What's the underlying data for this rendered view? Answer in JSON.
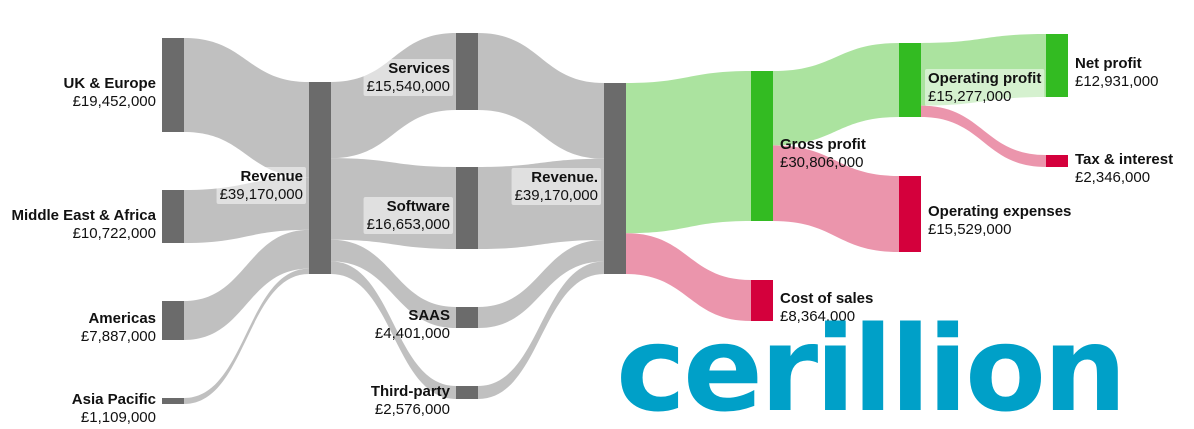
{
  "logo": {
    "text": "cerillion",
    "color": "#00a0c8"
  },
  "colors": {
    "node": "#6b6b6b",
    "flow_gray": "#bdbdbd",
    "flow_green": "#a6e29a",
    "node_green": "#33bb22",
    "flow_pink": "#ea8fa8",
    "node_red": "#d4003c"
  },
  "chart_data": {
    "type": "sankey",
    "currency": "£",
    "nodes": [
      {
        "id": "uk",
        "name": "UK & Europe",
        "value": "£19,452,000"
      },
      {
        "id": "mea",
        "name": "Middle East & Africa",
        "value": "£10,722,000"
      },
      {
        "id": "am",
        "name": "Americas",
        "value": "£7,887,000"
      },
      {
        "id": "ap",
        "name": "Asia Pacific",
        "value": "£1,109,000"
      },
      {
        "id": "rev",
        "name": "Revenue",
        "value": "£39,170,000"
      },
      {
        "id": "svc",
        "name": "Services",
        "value": "£15,540,000"
      },
      {
        "id": "sw",
        "name": "Software",
        "value": "£16,653,000"
      },
      {
        "id": "saas",
        "name": "SAAS",
        "value": "£4,401,000"
      },
      {
        "id": "tp",
        "name": "Third-party",
        "value": "£2,576,000"
      },
      {
        "id": "rev2",
        "name": "Revenue.",
        "value": "£39,170,000"
      },
      {
        "id": "gp",
        "name": "Gross profit",
        "value": "£30,806,000"
      },
      {
        "id": "cos",
        "name": "Cost of sales",
        "value": "£8,364,000"
      },
      {
        "id": "op",
        "name": "Operating profit",
        "value": "£15,277,000"
      },
      {
        "id": "opex",
        "name": "Operating expenses",
        "value": "£15,529,000"
      },
      {
        "id": "np",
        "name": "Net profit",
        "value": "£12,931,000"
      },
      {
        "id": "tax",
        "name": "Tax & interest",
        "value": "£2,346,000"
      }
    ],
    "links": [
      {
        "source": "uk",
        "target": "rev",
        "value": 19452000
      },
      {
        "source": "mea",
        "target": "rev",
        "value": 10722000
      },
      {
        "source": "am",
        "target": "rev",
        "value": 7887000
      },
      {
        "source": "ap",
        "target": "rev",
        "value": 1109000
      },
      {
        "source": "rev",
        "target": "svc",
        "value": 15540000
      },
      {
        "source": "rev",
        "target": "sw",
        "value": 16653000
      },
      {
        "source": "rev",
        "target": "saas",
        "value": 4401000
      },
      {
        "source": "rev",
        "target": "tp",
        "value": 2576000
      },
      {
        "source": "svc",
        "target": "rev2",
        "value": 15540000
      },
      {
        "source": "sw",
        "target": "rev2",
        "value": 16653000
      },
      {
        "source": "saas",
        "target": "rev2",
        "value": 4401000
      },
      {
        "source": "tp",
        "target": "rev2",
        "value": 2576000
      },
      {
        "source": "rev2",
        "target": "gp",
        "value": 30806000
      },
      {
        "source": "rev2",
        "target": "cos",
        "value": 8364000
      },
      {
        "source": "gp",
        "target": "op",
        "value": 15277000
      },
      {
        "source": "gp",
        "target": "opex",
        "value": 15529000
      },
      {
        "source": "op",
        "target": "np",
        "value": 12931000
      },
      {
        "source": "op",
        "target": "tax",
        "value": 2346000
      }
    ]
  }
}
